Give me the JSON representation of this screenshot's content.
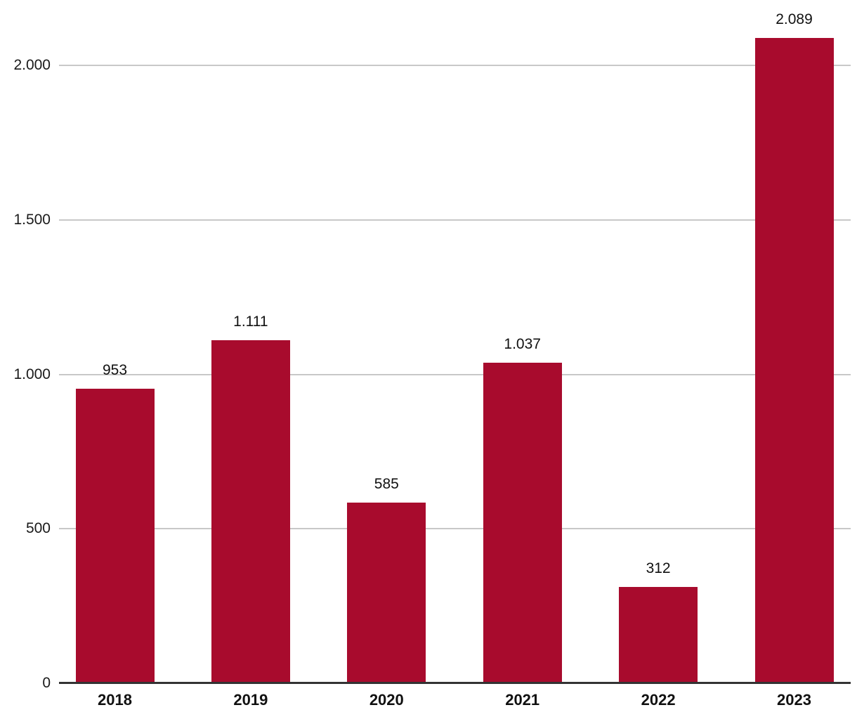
{
  "chart_data": {
    "type": "bar",
    "title": "",
    "xlabel": "",
    "ylabel": "",
    "categories": [
      "2018",
      "2019",
      "2020",
      "2021",
      "2022",
      "2023"
    ],
    "values": [
      953,
      1111,
      585,
      1037,
      312,
      2089
    ],
    "value_labels": [
      "953",
      "1.111",
      "585",
      "1.037",
      "312",
      "2.089"
    ],
    "y_ticks": [
      {
        "value": 0,
        "label": "0"
      },
      {
        "value": 500,
        "label": "500"
      },
      {
        "value": 1000,
        "label": "1.000"
      },
      {
        "value": 1500,
        "label": "1.500"
      },
      {
        "value": 2000,
        "label": "2.000"
      }
    ],
    "ylim": [
      0,
      2212
    ],
    "grid": true,
    "legend": false,
    "colors": {
      "bar": "#a80b2d",
      "gridline": "#c8c8c8",
      "axis_line": "#333333",
      "tick_label": "#1a1a1a",
      "value_label": "#111111",
      "background": "#ffffff"
    }
  }
}
